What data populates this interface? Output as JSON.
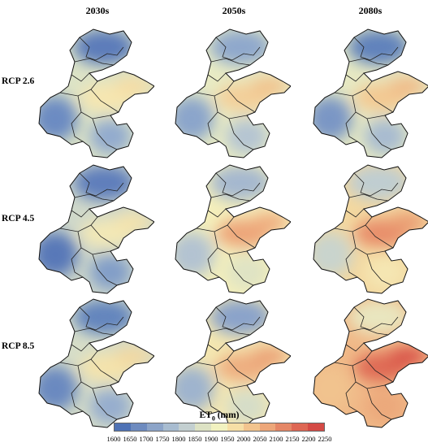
{
  "columns": [
    "2030s",
    "2050s",
    "2080s"
  ],
  "rows": [
    "RCP 2.6",
    "RCP 4.5",
    "RCP 8.5"
  ],
  "legend": {
    "title": "ET",
    "title_sub": "0",
    "title_unit": " (mm)",
    "ticks": [
      "1600",
      "1650",
      "1700",
      "1750",
      "1800",
      "1850",
      "1900",
      "1950",
      "2000",
      "2050",
      "2100",
      "2150",
      "2200",
      "2250"
    ],
    "colors": [
      "#4f72b5",
      "#6e8bbf",
      "#8ca4c8",
      "#a8bcd0",
      "#c3cfd0",
      "#dde2c4",
      "#f2f2c0",
      "#f6dfa6",
      "#f2c48e",
      "#eda77a",
      "#e58767",
      "#de6754",
      "#d44a45"
    ]
  },
  "maps": [
    {
      "row": "RCP 2.6",
      "col": "2030s",
      "north": "#5b7cba",
      "west": "#6c8bc2",
      "center": "#f6e6b0",
      "east": "#f6dda4",
      "south": "#93abce",
      "strip": "#dce3c6"
    },
    {
      "row": "RCP 2.6",
      "col": "2050s",
      "north": "#8fa8cc",
      "west": "#8ba5cb",
      "center": "#f3cf9a",
      "east": "#f1c38d",
      "south": "#b5c5d2",
      "strip": "#e8ebc4"
    },
    {
      "row": "RCP 2.6",
      "col": "2080s",
      "north": "#6182bc",
      "west": "#7a96c5",
      "center": "#f3c993",
      "east": "#f0bb88",
      "south": "#a8bbd0",
      "strip": "#e6e9c3"
    },
    {
      "row": "RCP 4.5",
      "col": "2030s",
      "north": "#5e7ebb",
      "west": "#5878b8",
      "center": "#f3e8b6",
      "east": "#f5e3ac",
      "south": "#829ec8",
      "strip": "#cfd8ca"
    },
    {
      "row": "RCP 4.5",
      "col": "2050s",
      "north": "#a5b8cf",
      "west": "#b3c3d1",
      "center": "#eda579",
      "east": "#efad7f",
      "south": "#dfe3c4",
      "strip": "#f4efbb"
    },
    {
      "row": "RCP 4.5",
      "col": "2080s",
      "north": "#bfcdd1",
      "west": "#c9d4cd",
      "center": "#e88e6a",
      "east": "#ea9c72",
      "south": "#f5e6b2",
      "strip": "#f3d8a0"
    },
    {
      "row": "RCP 8.5",
      "col": "2030s",
      "north": "#6385bd",
      "west": "#6a89c0",
      "center": "#f4e3ac",
      "east": "#f3d8a0",
      "south": "#96adce",
      "strip": "#d6ddc8"
    },
    {
      "row": "RCP 8.5",
      "col": "2050s",
      "north": "#8aa3ca",
      "west": "#9fb4ce",
      "center": "#eeae80",
      "east": "#eba377",
      "south": "#d6ddc8",
      "strip": "#f4e7b1"
    },
    {
      "row": "RCP 8.5",
      "col": "2080s",
      "north": "#e9e6bf",
      "west": "#f1c38e",
      "center": "#df6a55",
      "east": "#d9544a",
      "south": "#eca97b",
      "strip": "#f0b988"
    }
  ]
}
